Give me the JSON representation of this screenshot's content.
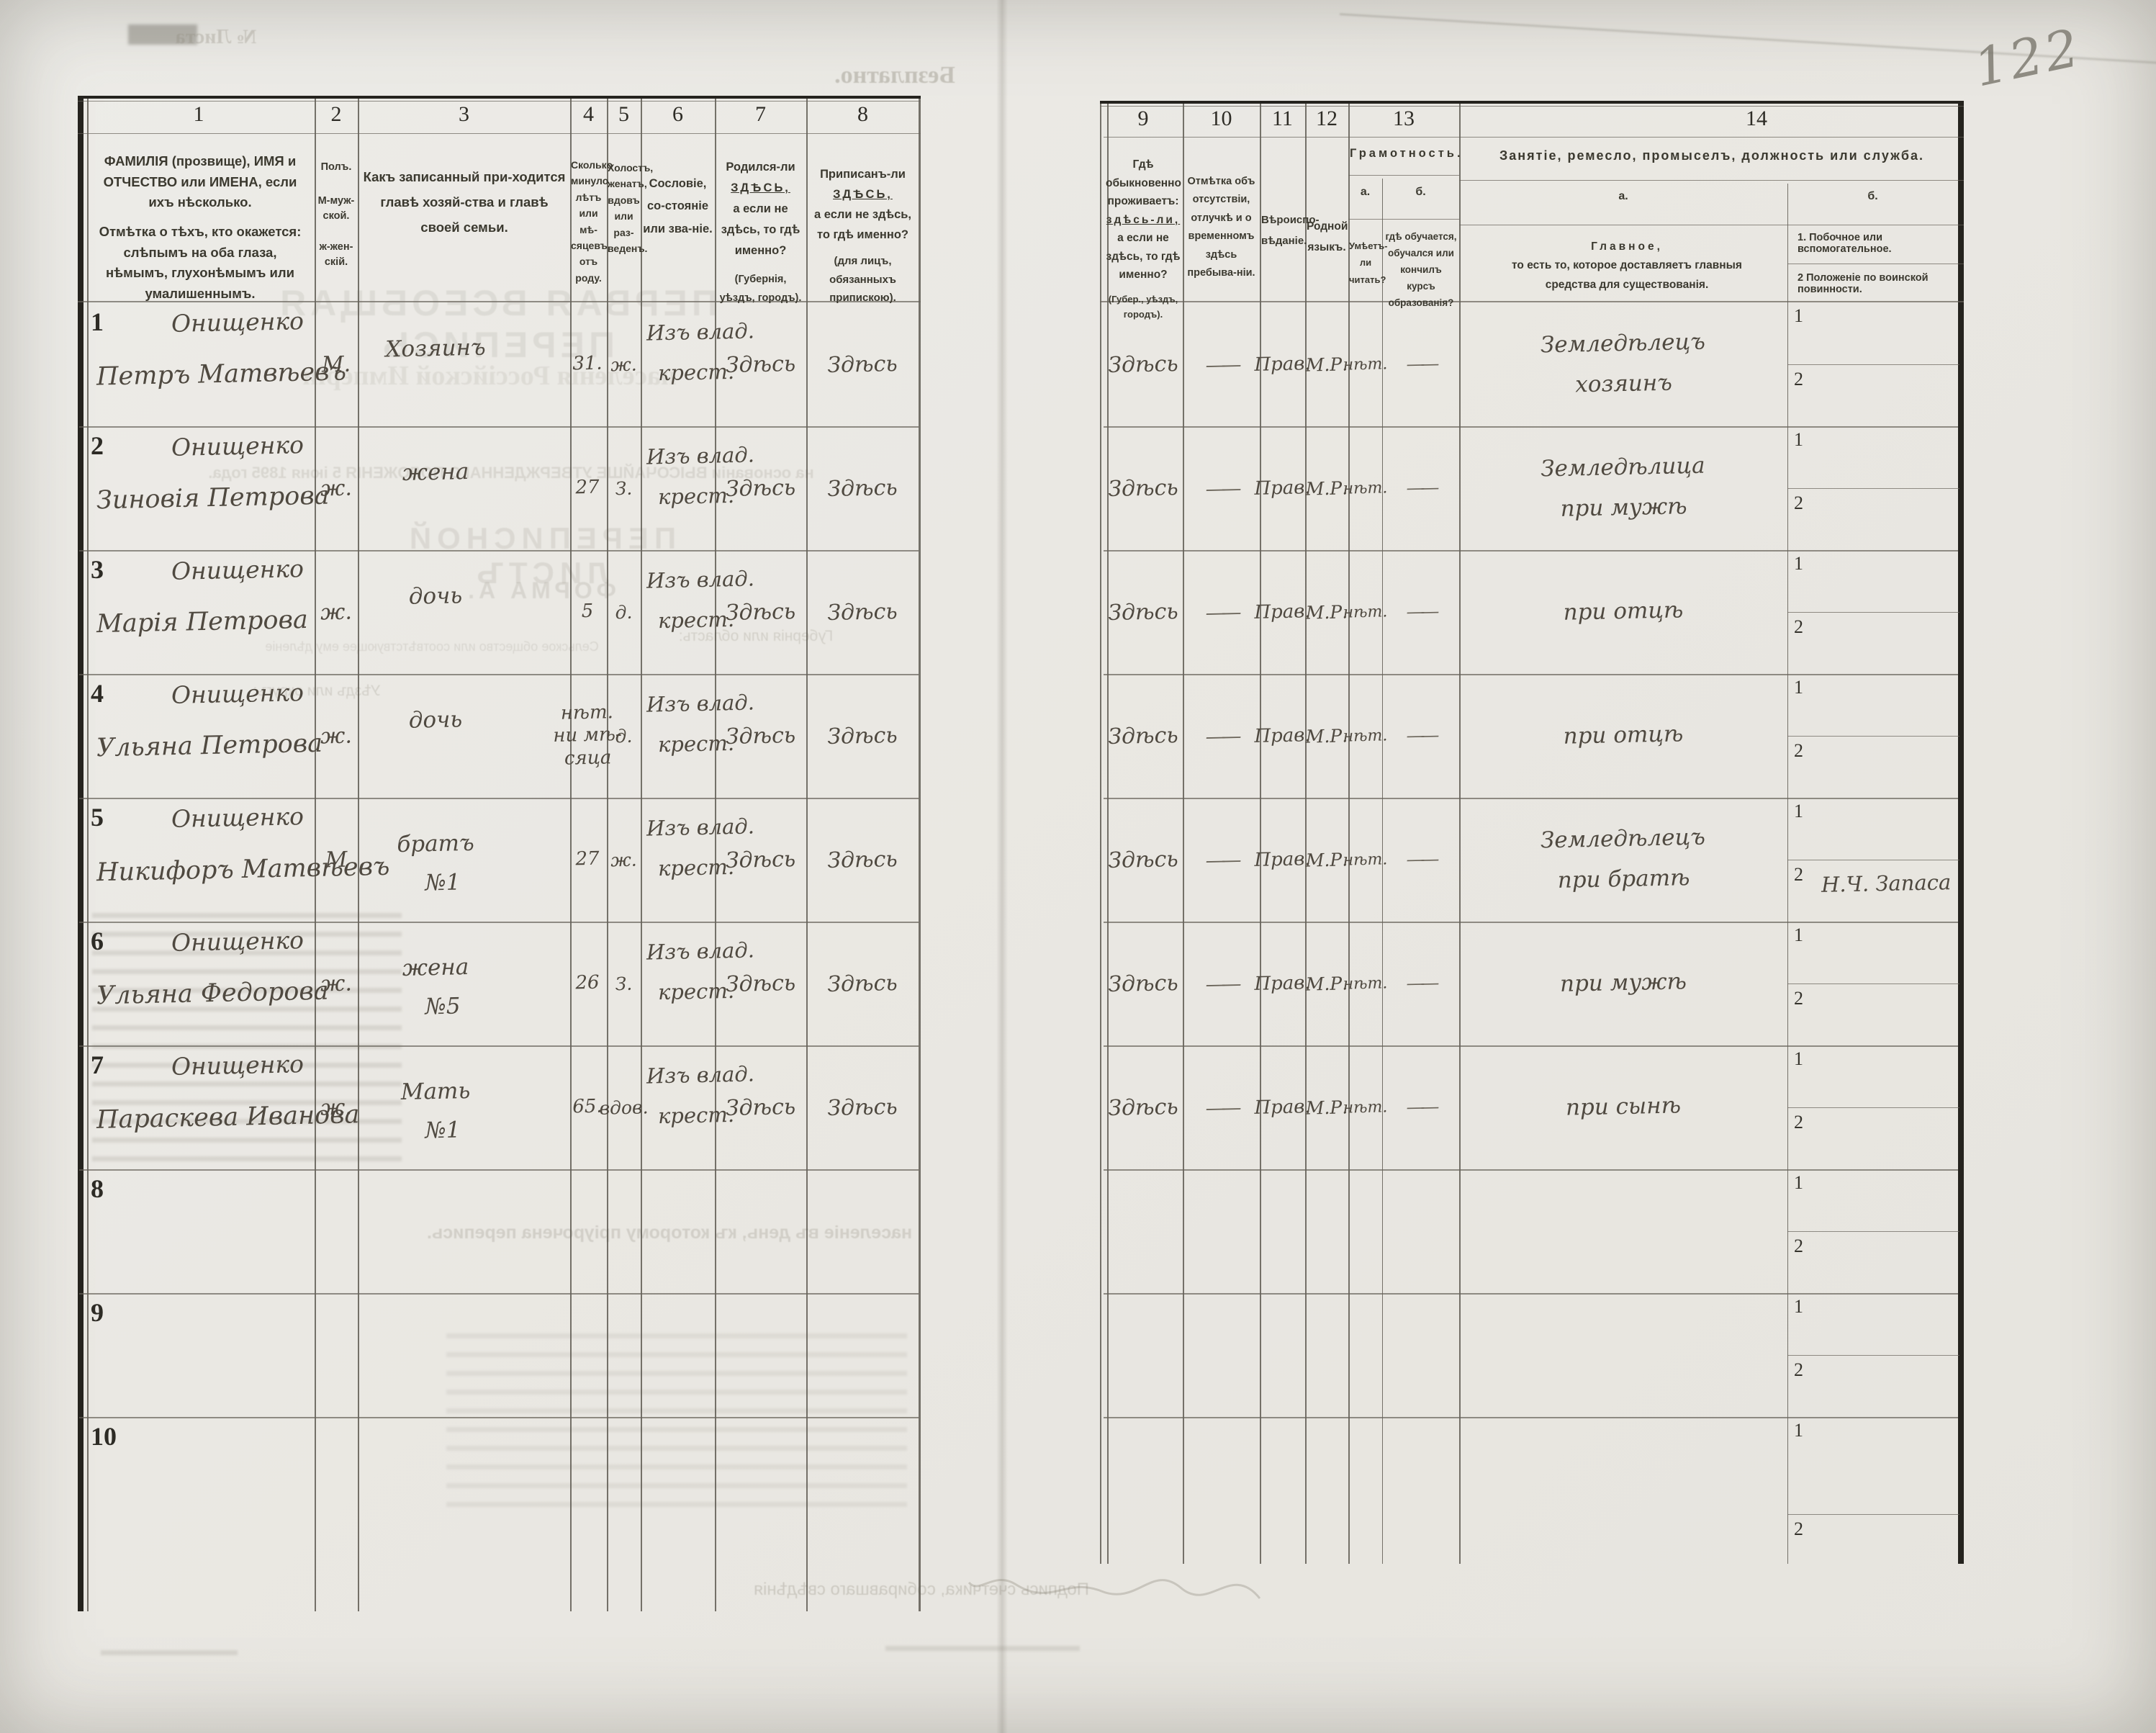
{
  "page": {
    "number": "122"
  },
  "col14b": {
    "one": "1",
    "two": "2"
  },
  "header": {
    "columns": [
      {
        "n": "1",
        "label1": "ФАМИЛІЯ (прозвище), ИМЯ и ОТЧЕСТВО или ИМЕНА, если ихъ нѣсколько.",
        "label2": "Отмѣтка о тѣхъ, кто окажется: слѣпымъ на оба глаза, нѣмымъ, глухонѣмымъ или умалишеннымъ."
      },
      {
        "n": "2",
        "l1": "Полъ.",
        "l2": "М-муж-",
        "l3": "ской.",
        "l4": "ж-жен-",
        "l5": "скій."
      },
      {
        "n": "3",
        "label": "Какъ записанный при-ходится главѣ хозяй-ства и главѣ своей семьи."
      },
      {
        "n": "4",
        "label": "Сколько минуло лѣтъ или мѣ-сяцевъ отъ роду."
      },
      {
        "n": "5",
        "label": "Холостъ, женатъ, вдовъ или раз-веденъ."
      },
      {
        "n": "6",
        "label": "Сословіе, со-стояніе или зва-ніе."
      },
      {
        "n": "7",
        "pre": "Родился-ли",
        "em": "ЗДѢСЬ,",
        "rest": "а если не здѣсь, то гдѣ именно?",
        "note": "(Губернія, уѣздъ, городъ)."
      },
      {
        "n": "8",
        "pre": "Приписанъ-ли",
        "em": "ЗДѢСЬ,",
        "rest": "а если не здѣсь, то гдѣ именно?",
        "note": "(для лицъ, обязанныхъ припискою)."
      },
      {
        "n": "9",
        "pre": "Гдѣ обыкновенно проживаетъ:",
        "em": "здѣсь-ли,",
        "rest": "а если не здѣсь, то гдѣ именно?",
        "note": "(Губер., уѣздъ, городъ)."
      },
      {
        "n": "10",
        "label": "Отмѣтка объ отсутствіи, отлучкѣ и о временномъ здѣсь пребыва-ніи."
      },
      {
        "n": "11",
        "label": "Вѣроиспо-вѣданіе."
      },
      {
        "n": "12",
        "label": "Родной языкъ."
      },
      {
        "n": "13",
        "group": "Грамотность.",
        "a": "а.",
        "b": "б.",
        "a_desc": "Умѣетъ-ли читать?",
        "b_desc": "гдѣ обучается, обучался или кончилъ курсъ образованія?"
      },
      {
        "n": "14",
        "group": "Занятіе, ремесло, промыселъ, должность или служба.",
        "a": "а.",
        "b": "б.",
        "a_head": "Главное,",
        "a_rest": "то есть то, которое доставляетъ главныя средства для существованія.",
        "b1": "1.  Побочное или вспомогательное.",
        "b2": "2  Положеніе по воинской повинности."
      }
    ]
  },
  "rows": [
    {
      "num": "1",
      "surname": "Онищенко",
      "name": "Петръ Матвѣевъ",
      "sex": "М.",
      "kin": "Хозяинъ",
      "kin2": "",
      "age1": "31.",
      "age2": "",
      "age3": "",
      "mar": "ж.",
      "est1": "Изъ влад.",
      "est2": "крест.",
      "born": "Здѣсь",
      "reg": "Здѣсь",
      "live": "Здѣсь",
      "abs": "——",
      "faith": "Прав.",
      "lang": "М.Р.",
      "read": "нѣт.",
      "school": "——",
      "occ1": "Земледѣлецъ",
      "occ2": "хозяинъ",
      "mil": ""
    },
    {
      "num": "2",
      "surname": "Онищенко",
      "name": "Зиновія Петрова",
      "sex": "ж.",
      "kin": "жена",
      "kin2": "",
      "age1": "27",
      "age2": "",
      "age3": "",
      "mar": "З.",
      "est1": "Изъ влад.",
      "est2": "крест.",
      "born": "Здѣсь",
      "reg": "Здѣсь",
      "live": "Здѣсь",
      "abs": "——",
      "faith": "Прав.",
      "lang": "М.Р.",
      "read": "нѣт.",
      "school": "——",
      "occ1": "Земледѣлица",
      "occ2": "при мужѣ",
      "mil": ""
    },
    {
      "num": "3",
      "surname": "Онищенко",
      "name": "Марія Петрова",
      "sex": "ж.",
      "kin": "дочь",
      "kin2": "",
      "age1": "5",
      "age2": "",
      "age3": "",
      "mar": "д.",
      "est1": "Изъ влад.",
      "est2": "крест.",
      "born": "Здѣсь",
      "reg": "Здѣсь",
      "live": "Здѣсь",
      "abs": "——",
      "faith": "Прав.",
      "lang": "М.Р.",
      "read": "нѣт.",
      "school": "——",
      "occ1": "при отцѣ",
      "occ2": "",
      "mil": ""
    },
    {
      "num": "4",
      "surname": "Онищенко",
      "name": "Ульяна Петрова",
      "sex": "ж.",
      "kin": "дочь",
      "kin2": "",
      "age1": "нѣт.",
      "age2": "ни мѣ-",
      "age3": "сяца",
      "mar": "д.",
      "est1": "Изъ влад.",
      "est2": "крест.",
      "born": "Здѣсь",
      "reg": "Здѣсь",
      "live": "Здѣсь",
      "abs": "——",
      "faith": "Прав.",
      "lang": "М.Р.",
      "read": "нѣт.",
      "school": "——",
      "occ1": "при отцѣ",
      "occ2": "",
      "mil": ""
    },
    {
      "num": "5",
      "surname": "Онищенко",
      "name": "Никифоръ Матвѣевъ",
      "sex": "М",
      "kin": "братъ",
      "kin2": "№1",
      "age1": "27",
      "age2": "",
      "age3": "",
      "mar": "ж.",
      "est1": "Изъ влад.",
      "est2": "крест.",
      "born": "Здѣсь",
      "reg": "Здѣсь",
      "live": "Здѣсь",
      "abs": "——",
      "faith": "Прав.",
      "lang": "М.Р.",
      "read": "нѣт.",
      "school": "——",
      "occ1": "Земледѣлецъ",
      "occ2": "при братѣ",
      "mil": "Н.Ч. Запаса"
    },
    {
      "num": "6",
      "surname": "Онищенко",
      "name": "Ульяна Федорова",
      "sex": "ж.",
      "kin": "жена",
      "kin2": "№5",
      "age1": "26",
      "age2": "",
      "age3": "",
      "mar": "З.",
      "est1": "Изъ влад.",
      "est2": "крест.",
      "born": "Здѣсь",
      "reg": "Здѣсь",
      "live": "Здѣсь",
      "abs": "——",
      "faith": "Прав.",
      "lang": "М.Р.",
      "read": "нѣт.",
      "school": "——",
      "occ1": "при мужѣ",
      "occ2": "",
      "mil": ""
    },
    {
      "num": "7",
      "surname": "Онищенко",
      "name": "Параскева Иванова",
      "sex": "ж.",
      "kin": "Мать",
      "kin2": "№1",
      "age1": "65.",
      "age2": "",
      "age3": "",
      "mar": "вдов.",
      "est1": "Изъ влад.",
      "est2": "крест.",
      "born": "Здѣсь",
      "reg": "Здѣсь",
      "live": "Здѣсь",
      "abs": "——",
      "faith": "Прав.",
      "lang": "М.Р.",
      "read": "нѣт.",
      "school": "——",
      "occ1": "при сынѣ",
      "occ2": "",
      "mil": ""
    },
    {
      "num": "8",
      "surname": "",
      "name": "",
      "sex": "",
      "kin": "",
      "kin2": "",
      "age1": "",
      "age2": "",
      "age3": "",
      "mar": "",
      "est1": "",
      "est2": "",
      "born": "",
      "reg": "",
      "live": "",
      "abs": "",
      "faith": "",
      "lang": "",
      "read": "",
      "school": "",
      "occ1": "",
      "occ2": "",
      "mil": ""
    },
    {
      "num": "9",
      "surname": "",
      "name": "",
      "sex": "",
      "kin": "",
      "kin2": "",
      "age1": "",
      "age2": "",
      "age3": "",
      "mar": "",
      "est1": "",
      "est2": "",
      "born": "",
      "reg": "",
      "live": "",
      "abs": "",
      "faith": "",
      "lang": "",
      "read": "",
      "school": "",
      "occ1": "",
      "occ2": "",
      "mil": ""
    },
    {
      "num": "10",
      "surname": "",
      "name": "",
      "sex": "",
      "kin": "",
      "kin2": "",
      "age1": "",
      "age2": "",
      "age3": "",
      "mar": "",
      "est1": "",
      "est2": "",
      "born": "",
      "reg": "",
      "live": "",
      "abs": "",
      "faith": "",
      "lang": "",
      "read": "",
      "school": "",
      "occ1": "",
      "occ2": "",
      "mil": ""
    }
  ],
  "bleedthrough": {
    "items": [
      {
        "text": "Безплатно."
      },
      {
        "text": "№ Листа"
      },
      {
        "text": "ПЕРВАЯ ВСЕОБЩАЯ ПЕРЕПИСЬ"
      },
      {
        "text": "населенія Россійской Имперіи"
      },
      {
        "text": "на основаніи ВЫСОЧАЙШЕ УТВЕРЖДЕННАГО ПОЛОЖЕНІЯ 5 іюня 1895 года."
      },
      {
        "text": "ПЕРЕПИСНОЙ ЛИСТЪ"
      },
      {
        "text": "ФОРМА А."
      },
      {
        "text": "Губернія или область:"
      },
      {
        "text": "Сельское общество или соотвѣтствующее ему дѣленіе"
      },
      {
        "text": "Уѣздъ или округъ:"
      },
      {
        "text": "населеніе въ день, къ которому пріурочена перепись."
      },
      {
        "text": "Подпись счетчика, собиравшаго свѣдѣнія"
      }
    ]
  }
}
